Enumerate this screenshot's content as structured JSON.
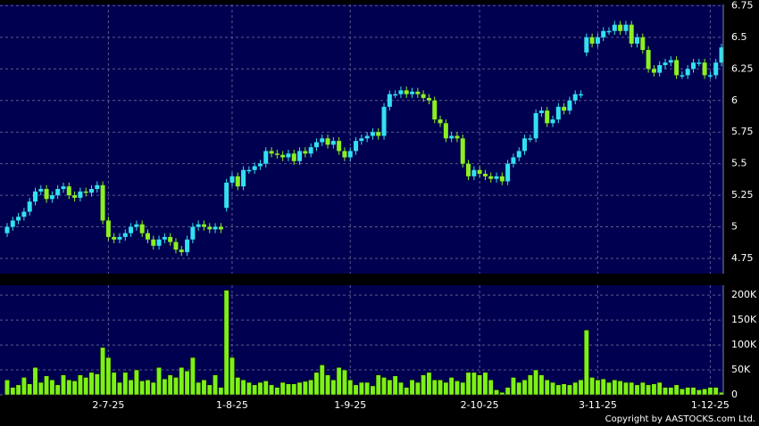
{
  "chart_data": [
    {
      "type": "candlestick",
      "up_color": "#33e0f0",
      "down_color": "#8cf020",
      "background": "#000050",
      "grid": true,
      "ylim": [
        4.63,
        6.76
      ],
      "yticks": [
        4.75,
        5,
        5.25,
        5.5,
        5.75,
        6,
        6.25,
        6.5,
        6.75
      ],
      "open": [
        4.95,
        5.0,
        5.05,
        5.08,
        5.12,
        5.2,
        5.28,
        5.3,
        5.22,
        5.25,
        5.3,
        5.32,
        5.25,
        5.23,
        5.28,
        5.27,
        5.3,
        5.33,
        5.05,
        4.92,
        4.9,
        4.92,
        4.95,
        5.0,
        5.02,
        4.95,
        4.9,
        4.85,
        4.9,
        4.92,
        4.88,
        4.82,
        4.8,
        4.9,
        5.0,
        5.02,
        5.0,
        4.98,
        5.0,
        5.15,
        5.35,
        5.4,
        5.32,
        5.45,
        5.45,
        5.48,
        5.5,
        5.6,
        5.58,
        5.57,
        5.55,
        5.58,
        5.52,
        5.6,
        5.58,
        5.63,
        5.67,
        5.7,
        5.65,
        5.68,
        5.6,
        5.55,
        5.6,
        5.68,
        5.7,
        5.72,
        5.75,
        5.72,
        5.95,
        6.05,
        6.05,
        6.08,
        6.05,
        6.07,
        6.05,
        6.02,
        6.0,
        5.85,
        5.82,
        5.7,
        5.72,
        5.7,
        5.5,
        5.4,
        5.45,
        5.42,
        5.4,
        5.38,
        5.4,
        5.36,
        5.5,
        5.55,
        5.6,
        5.7,
        5.7,
        5.9,
        5.92,
        5.82,
        5.85,
        5.95,
        5.92,
        6.0,
        6.05,
        6.38,
        6.5,
        6.45,
        6.5,
        6.55,
        6.55,
        6.6,
        6.55,
        6.6,
        6.45,
        6.5,
        6.4,
        6.25,
        6.22,
        6.28,
        6.3,
        6.32,
        6.2,
        6.2,
        6.25,
        6.3,
        6.3,
        6.2,
        6.2,
        6.3
      ],
      "high": [
        5.03,
        5.08,
        5.11,
        5.15,
        5.23,
        5.31,
        5.33,
        5.33,
        5.28,
        5.33,
        5.35,
        5.35,
        5.28,
        5.31,
        5.31,
        5.33,
        5.36,
        5.36,
        5.08,
        4.95,
        4.95,
        4.98,
        5.03,
        5.05,
        5.05,
        4.98,
        4.93,
        4.93,
        4.95,
        4.95,
        4.91,
        4.85,
        4.93,
        5.03,
        5.05,
        5.05,
        5.03,
        5.03,
        5.03,
        5.38,
        5.43,
        5.43,
        5.48,
        5.48,
        5.51,
        5.53,
        5.63,
        5.63,
        5.61,
        5.6,
        5.61,
        5.61,
        5.63,
        5.63,
        5.66,
        5.7,
        5.73,
        5.73,
        5.71,
        5.71,
        5.63,
        5.63,
        5.71,
        5.73,
        5.75,
        5.78,
        5.78,
        5.98,
        6.08,
        6.08,
        6.11,
        6.11,
        6.1,
        6.1,
        6.08,
        6.05,
        6.03,
        5.88,
        5.85,
        5.75,
        5.75,
        5.73,
        5.53,
        5.48,
        5.48,
        5.45,
        5.43,
        5.43,
        5.43,
        5.53,
        5.58,
        5.63,
        5.73,
        5.73,
        5.93,
        5.95,
        5.95,
        5.88,
        5.98,
        5.98,
        6.03,
        6.08,
        6.08,
        6.53,
        6.53,
        6.53,
        6.58,
        6.58,
        6.63,
        6.63,
        6.63,
        6.63,
        6.53,
        6.53,
        6.43,
        6.28,
        6.31,
        6.33,
        6.35,
        6.35,
        6.23,
        6.28,
        6.33,
        6.33,
        6.33,
        6.23,
        6.33,
        6.45
      ],
      "low": [
        4.92,
        4.97,
        5.02,
        5.05,
        5.09,
        5.17,
        5.25,
        5.19,
        5.19,
        5.22,
        5.27,
        5.22,
        5.2,
        5.2,
        5.24,
        5.24,
        5.27,
        5.02,
        4.89,
        4.87,
        4.87,
        4.89,
        4.92,
        4.97,
        4.92,
        4.87,
        4.82,
        4.82,
        4.87,
        4.85,
        4.79,
        4.77,
        4.77,
        4.87,
        4.97,
        4.97,
        4.95,
        4.95,
        4.95,
        5.12,
        5.32,
        5.29,
        5.29,
        5.42,
        5.42,
        5.45,
        5.47,
        5.55,
        5.54,
        5.52,
        5.52,
        5.49,
        5.49,
        5.55,
        5.55,
        5.6,
        5.64,
        5.62,
        5.62,
        5.57,
        5.52,
        5.52,
        5.57,
        5.65,
        5.67,
        5.69,
        5.69,
        5.69,
        5.92,
        6.02,
        6.02,
        6.02,
        6.02,
        6.02,
        5.99,
        5.97,
        5.82,
        5.79,
        5.67,
        5.67,
        5.67,
        5.47,
        5.37,
        5.37,
        5.39,
        5.37,
        5.35,
        5.35,
        5.33,
        5.33,
        5.47,
        5.52,
        5.57,
        5.67,
        5.67,
        5.87,
        5.79,
        5.79,
        5.82,
        5.89,
        5.89,
        5.97,
        6.02,
        6.35,
        6.42,
        6.42,
        6.47,
        6.52,
        6.52,
        6.52,
        6.52,
        6.42,
        6.42,
        6.37,
        6.22,
        6.19,
        6.19,
        6.25,
        6.27,
        6.17,
        6.17,
        6.17,
        6.22,
        6.27,
        6.17,
        6.17,
        6.17,
        6.27
      ],
      "close": [
        5.0,
        5.05,
        5.08,
        5.12,
        5.2,
        5.28,
        5.3,
        5.22,
        5.25,
        5.3,
        5.32,
        5.25,
        5.23,
        5.28,
        5.27,
        5.3,
        5.33,
        5.05,
        4.92,
        4.9,
        4.92,
        4.95,
        5.0,
        5.02,
        4.95,
        4.9,
        4.85,
        4.9,
        4.92,
        4.88,
        4.82,
        4.8,
        4.9,
        5.0,
        5.02,
        5.0,
        4.98,
        5.0,
        4.98,
        5.35,
        5.4,
        5.32,
        5.45,
        5.45,
        5.48,
        5.5,
        5.6,
        5.58,
        5.57,
        5.55,
        5.58,
        5.52,
        5.6,
        5.58,
        5.63,
        5.67,
        5.7,
        5.65,
        5.68,
        5.6,
        5.55,
        5.6,
        5.68,
        5.7,
        5.72,
        5.75,
        5.72,
        5.95,
        6.05,
        6.05,
        6.08,
        6.05,
        6.07,
        6.05,
        6.02,
        6.0,
        5.85,
        5.82,
        5.7,
        5.72,
        5.7,
        5.5,
        5.4,
        5.45,
        5.42,
        5.4,
        5.38,
        5.4,
        5.36,
        5.5,
        5.55,
        5.6,
        5.7,
        5.7,
        5.9,
        5.92,
        5.82,
        5.85,
        5.95,
        5.92,
        6.0,
        6.05,
        6.05,
        6.5,
        6.45,
        6.5,
        6.55,
        6.55,
        6.6,
        6.55,
        6.6,
        6.45,
        6.5,
        6.4,
        6.25,
        6.22,
        6.28,
        6.3,
        6.32,
        6.2,
        6.2,
        6.25,
        6.3,
        6.3,
        6.2,
        6.2,
        6.3,
        6.42
      ]
    },
    {
      "type": "bar",
      "color": "#7cf018",
      "background": "#000050",
      "grid": true,
      "ylim": [
        0,
        220000
      ],
      "yticks": [
        0,
        {
          "value": 50000,
          "label": "50K"
        },
        {
          "value": 100000,
          "label": "100K"
        },
        {
          "value": 150000,
          "label": "150K"
        },
        {
          "value": 200000,
          "label": "200K"
        }
      ],
      "categories": [
        null,
        null,
        null,
        null,
        null,
        null,
        null,
        null,
        null,
        null,
        null,
        null,
        null,
        null,
        null,
        null,
        null,
        null,
        "2-7-25",
        null,
        null,
        null,
        null,
        null,
        null,
        null,
        null,
        null,
        null,
        null,
        null,
        null,
        null,
        null,
        null,
        null,
        null,
        null,
        null,
        null,
        "1-8-25",
        null,
        null,
        null,
        null,
        null,
        null,
        null,
        null,
        null,
        null,
        null,
        null,
        null,
        null,
        null,
        null,
        null,
        null,
        null,
        null,
        "1-9-25",
        null,
        null,
        null,
        null,
        null,
        null,
        null,
        null,
        null,
        null,
        null,
        null,
        null,
        null,
        null,
        null,
        null,
        null,
        null,
        null,
        null,
        null,
        "2-10-25",
        null,
        null,
        null,
        null,
        null,
        null,
        null,
        null,
        null,
        null,
        null,
        null,
        null,
        null,
        null,
        null,
        null,
        null,
        null,
        null,
        "3-11-25",
        null,
        null,
        null,
        null,
        null,
        null,
        null,
        null,
        null,
        null,
        null,
        null,
        null,
        null,
        null,
        null,
        null,
        null,
        null,
        "1-12-25",
        null,
        null
      ],
      "values": [
        30000,
        15000,
        20000,
        35000,
        22000,
        55000,
        25000,
        38000,
        30000,
        20000,
        40000,
        30000,
        28000,
        40000,
        35000,
        45000,
        42000,
        95000,
        75000,
        45000,
        25000,
        45000,
        30000,
        50000,
        28000,
        30000,
        25000,
        55000,
        32000,
        40000,
        35000,
        55000,
        48000,
        75000,
        25000,
        30000,
        20000,
        40000,
        15000,
        210000,
        75000,
        35000,
        30000,
        25000,
        20000,
        25000,
        28000,
        20000,
        15000,
        25000,
        22000,
        22000,
        25000,
        27000,
        30000,
        45000,
        60000,
        40000,
        30000,
        55000,
        50000,
        30000,
        20000,
        25000,
        25000,
        18000,
        40000,
        35000,
        30000,
        38000,
        25000,
        15000,
        30000,
        25000,
        40000,
        45000,
        30000,
        30000,
        25000,
        35000,
        28000,
        25000,
        45000,
        45000,
        40000,
        45000,
        30000,
        10000,
        5000,
        15000,
        35000,
        25000,
        30000,
        40000,
        50000,
        40000,
        30000,
        25000,
        20000,
        22000,
        20000,
        25000,
        30000,
        130000,
        35000,
        30000,
        32000,
        25000,
        30000,
        28000,
        25000,
        25000,
        20000,
        25000,
        20000,
        22000,
        25000,
        15000,
        15000,
        20000,
        12000,
        15000,
        15000,
        10000,
        12000,
        15000,
        15000,
        5000
      ]
    }
  ],
  "copyright": "Copyright by AASTOCKS.com Ltd."
}
